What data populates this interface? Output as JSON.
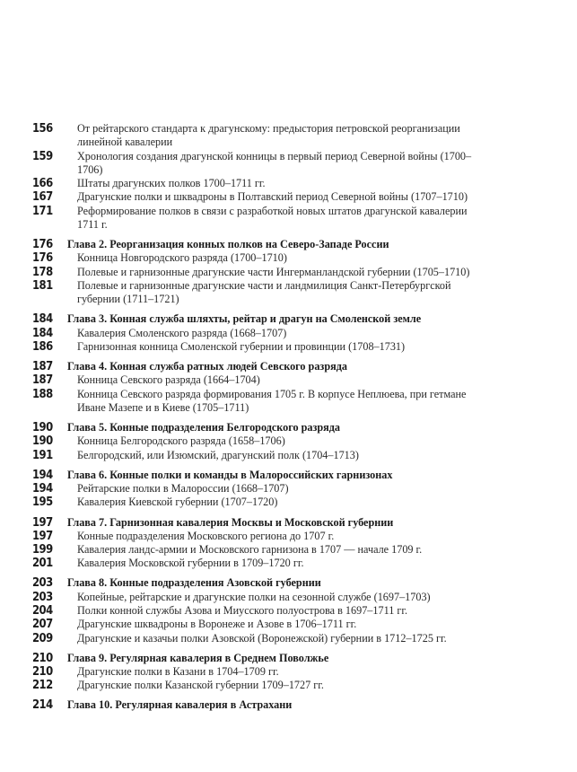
{
  "toc": {
    "groups": [
      {
        "entries": [
          {
            "page": "156",
            "title": "От рейтарского стандарта к драгунскому: предыстория петровской реорганизации линейной кавалерии",
            "chapter": false
          },
          {
            "page": "159",
            "title": "Хронология создания драгунской конницы в первый период Северной войны (1700–1706)",
            "chapter": false
          },
          {
            "page": "166",
            "title": "Штаты драгунских полков 1700–1711 гг.",
            "chapter": false
          },
          {
            "page": "167",
            "title": "Драгунские полки и шквадроны в Полтавский период Северной войны (1707–1710)",
            "chapter": false
          },
          {
            "page": "171",
            "title": "Реформирование полков в связи с разработкой новых штатов драгунской кавалерии 1711 г.",
            "chapter": false
          }
        ]
      },
      {
        "entries": [
          {
            "page": "176",
            "title": "Глава 2. Реорганизация конных полков на Северо-Западе России",
            "chapter": true
          },
          {
            "page": "176",
            "title": "Конница Новгородского разряда (1700–1710)",
            "chapter": false
          },
          {
            "page": "178",
            "title": "Полевые и гарнизонные драгунские части Ингерманландской губернии (1705–1710)",
            "chapter": false
          },
          {
            "page": "181",
            "title": "Полевые и гарнизонные драгунские части и ландмилиция Санкт-Петербургской губернии (1711–1721)",
            "chapter": false
          }
        ]
      },
      {
        "entries": [
          {
            "page": "184",
            "title": "Глава 3. Конная служба шляхты, рейтар и драгун на Смоленской земле",
            "chapter": true
          },
          {
            "page": "184",
            "title": "Кавалерия Смоленского разряда (1668–1707)",
            "chapter": false
          },
          {
            "page": "186",
            "title": "Гарнизонная конница Смоленской губернии и провинции (1708–1731)",
            "chapter": false
          }
        ]
      },
      {
        "entries": [
          {
            "page": "187",
            "title": "Глава 4. Конная служба ратных людей Севского разряда",
            "chapter": true
          },
          {
            "page": "187",
            "title": "Конница Севского разряда (1664–1704)",
            "chapter": false
          },
          {
            "page": "188",
            "title": "Конница Севского разряда формирования 1705 г. В корпусе Неплюева, при гетмане Иване Мазепе и в Киеве (1705–1711)",
            "chapter": false
          }
        ]
      },
      {
        "entries": [
          {
            "page": "190",
            "title": "Глава 5. Конные подразделения Белгородского разряда",
            "chapter": true
          },
          {
            "page": "190",
            "title": "Конница Белгородского разряда (1658–1706)",
            "chapter": false
          },
          {
            "page": "191",
            "title": "Белгородский, или Изюмский, драгунский полк (1704–1713)",
            "chapter": false
          }
        ]
      },
      {
        "entries": [
          {
            "page": "194",
            "title": "Глава 6. Конные полки и команды в Малороссийских гарнизонах",
            "chapter": true
          },
          {
            "page": "194",
            "title": "Рейтарские полки в Малороссии (1668–1707)",
            "chapter": false
          },
          {
            "page": "195",
            "title": "Кавалерия Киевской губернии (1707–1720)",
            "chapter": false
          }
        ]
      },
      {
        "entries": [
          {
            "page": "197",
            "title": "Глава 7. Гарнизонная кавалерия Москвы и Московской губернии",
            "chapter": true
          },
          {
            "page": "197",
            "title": "Конные подразделения Московского региона до 1707 г.",
            "chapter": false
          },
          {
            "page": "199",
            "title": "Кавалерия ландс-армии и Московского гарнизона в 1707 — начале 1709 г.",
            "chapter": false
          },
          {
            "page": "201",
            "title": "Кавалерия Московской губернии в 1709–1720 гг.",
            "chapter": false
          }
        ]
      },
      {
        "entries": [
          {
            "page": "203",
            "title": "Глава 8. Конные подразделения Азовской губернии",
            "chapter": true
          },
          {
            "page": "203",
            "title": "Копейные, рейтарские и драгунские полки на сезонной службе (1697–1703)",
            "chapter": false
          },
          {
            "page": "204",
            "title": "Полки конной службы Азова и Миусского полуострова в 1697–1711 гг.",
            "chapter": false
          },
          {
            "page": "207",
            "title": "Драгунские шквадроны в Воронеже и Азове в 1706–1711 гг.",
            "chapter": false
          },
          {
            "page": "209",
            "title": "Драгунские и казачьи полки Азовской (Воронежской) губернии в 1712–1725 гг.",
            "chapter": false
          }
        ]
      },
      {
        "entries": [
          {
            "page": "210",
            "title": "Глава 9. Регулярная кавалерия в Среднем Поволжье",
            "chapter": true
          },
          {
            "page": "210",
            "title": "Драгунские полки в Казани в 1704–1709 гг.",
            "chapter": false
          },
          {
            "page": "212",
            "title": "Драгунские полки Казанской губернии 1709–1727 гг.",
            "chapter": false
          }
        ]
      },
      {
        "entries": [
          {
            "page": "214",
            "title": "Глава 10. Регулярная кавалерия в Астрахани",
            "chapter": true
          }
        ]
      }
    ]
  }
}
